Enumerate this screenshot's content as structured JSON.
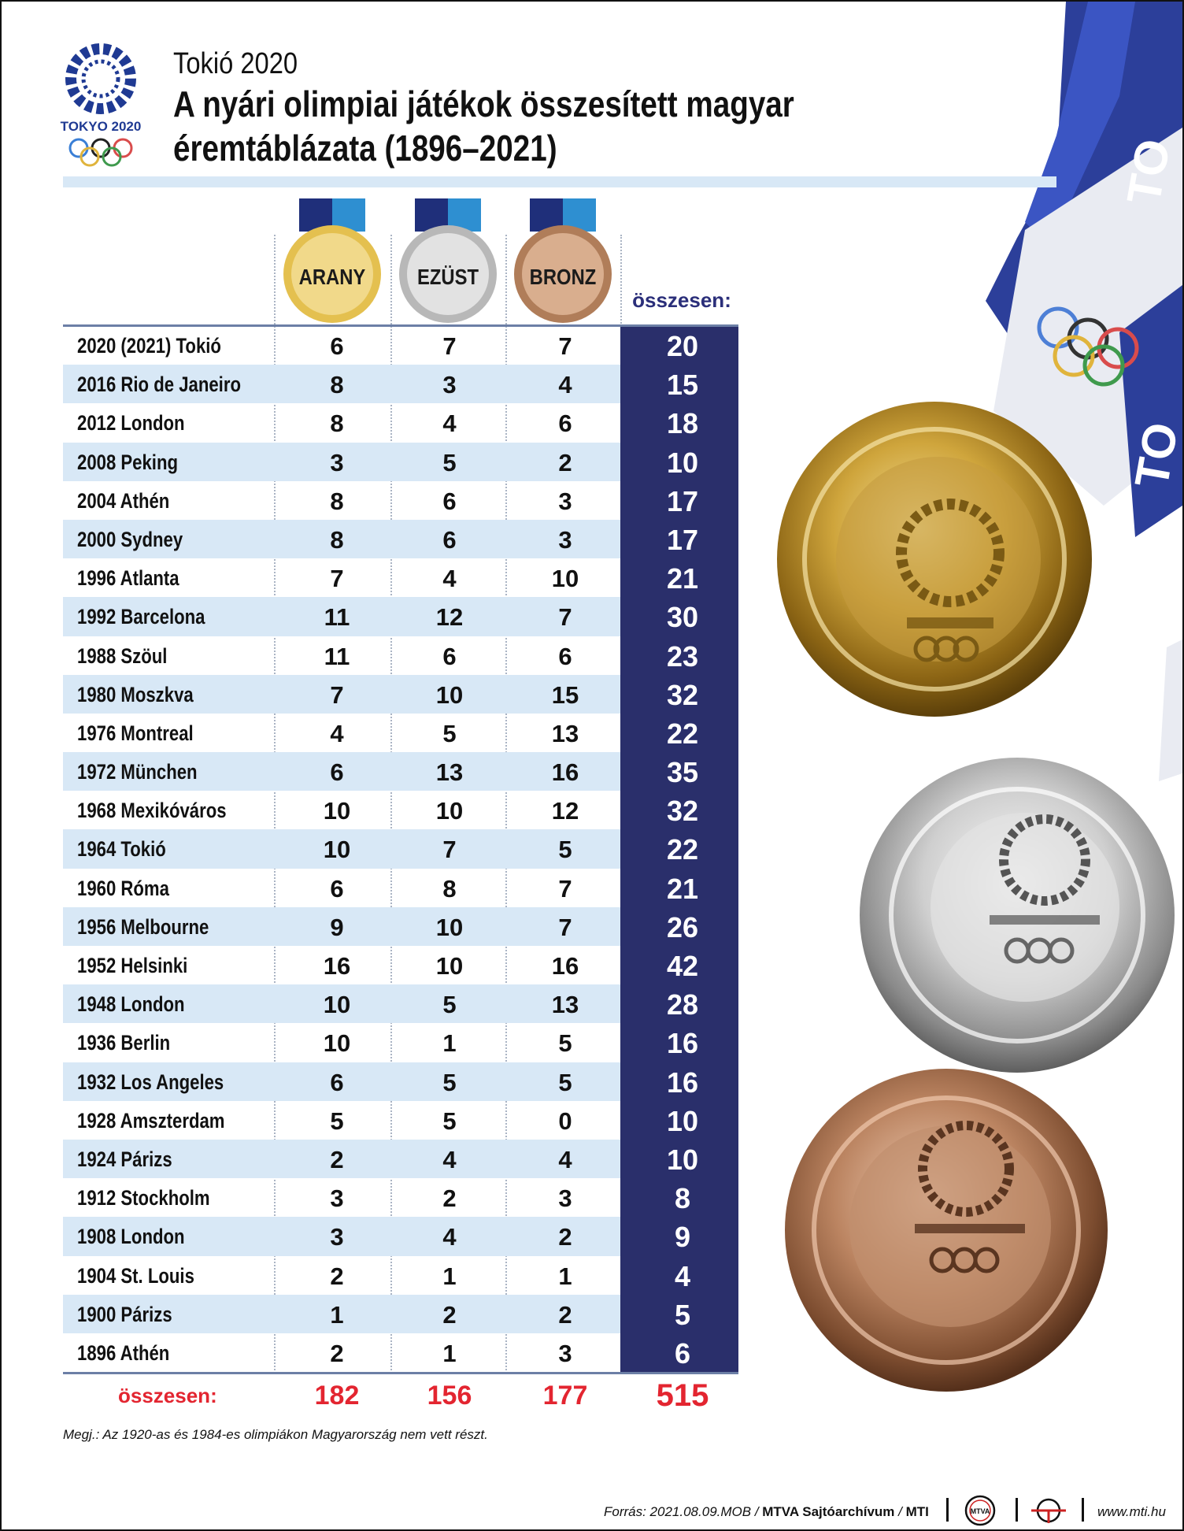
{
  "header": {
    "kicker": "Tokió 2020",
    "title_line1": "A nyári olimpiai játékok összesített magyar",
    "title_line2": "éremtáblázata (1896–2021)",
    "logo_text": "TOKYO 2020"
  },
  "columns": {
    "gold": "ARANY",
    "silver": "EZÜST",
    "bronze": "BRONZ",
    "total": "összesen:"
  },
  "rows": [
    {
      "games": "2020 (2021)  Tokió",
      "gold": "6",
      "silver": "7",
      "bronze": "7",
      "total": "20"
    },
    {
      "games": "2016  Rio de Janeiro",
      "gold": "8",
      "silver": "3",
      "bronze": "4",
      "total": "15"
    },
    {
      "games": "2012  London",
      "gold": "8",
      "silver": "4",
      "bronze": "6",
      "total": "18"
    },
    {
      "games": "2008  Peking",
      "gold": "3",
      "silver": "5",
      "bronze": "2",
      "total": "10"
    },
    {
      "games": "2004  Athén",
      "gold": "8",
      "silver": "6",
      "bronze": "3",
      "total": "17"
    },
    {
      "games": "2000  Sydney",
      "gold": "8",
      "silver": "6",
      "bronze": "3",
      "total": "17"
    },
    {
      "games": "1996  Atlanta",
      "gold": "7",
      "silver": "4",
      "bronze": "10",
      "total": "21"
    },
    {
      "games": "1992  Barcelona",
      "gold": "11",
      "silver": "12",
      "bronze": "7",
      "total": "30"
    },
    {
      "games": "1988  Szöul",
      "gold": "11",
      "silver": "6",
      "bronze": "6",
      "total": "23"
    },
    {
      "games": "1980  Moszkva",
      "gold": "7",
      "silver": "10",
      "bronze": "15",
      "total": "32"
    },
    {
      "games": "1976  Montreal",
      "gold": "4",
      "silver": "5",
      "bronze": "13",
      "total": "22"
    },
    {
      "games": "1972  München",
      "gold": "6",
      "silver": "13",
      "bronze": "16",
      "total": "35"
    },
    {
      "games": "1968  Mexikóváros",
      "gold": "10",
      "silver": "10",
      "bronze": "12",
      "total": "32"
    },
    {
      "games": "1964  Tokió",
      "gold": "10",
      "silver": "7",
      "bronze": "5",
      "total": "22"
    },
    {
      "games": "1960  Róma",
      "gold": "6",
      "silver": "8",
      "bronze": "7",
      "total": "21"
    },
    {
      "games": "1956  Melbourne",
      "gold": "9",
      "silver": "10",
      "bronze": "7",
      "total": "26"
    },
    {
      "games": "1952  Helsinki",
      "gold": "16",
      "silver": "10",
      "bronze": "16",
      "total": "42"
    },
    {
      "games": "1948  London",
      "gold": "10",
      "silver": "5",
      "bronze": "13",
      "total": "28"
    },
    {
      "games": "1936  Berlin",
      "gold": "10",
      "silver": "1",
      "bronze": "5",
      "total": "16"
    },
    {
      "games": "1932  Los Angeles",
      "gold": "6",
      "silver": "5",
      "bronze": "5",
      "total": "16"
    },
    {
      "games": "1928  Amszterdam",
      "gold": "5",
      "silver": "5",
      "bronze": "0",
      "total": "10"
    },
    {
      "games": "1924  Párizs",
      "gold": "2",
      "silver": "4",
      "bronze": "4",
      "total": "10"
    },
    {
      "games": "1912  Stockholm",
      "gold": "3",
      "silver": "2",
      "bronze": "3",
      "total": "8"
    },
    {
      "games": "1908  London",
      "gold": "3",
      "silver": "4",
      "bronze": "2",
      "total": "9"
    },
    {
      "games": "1904  St. Louis",
      "gold": "2",
      "silver": "1",
      "bronze": "1",
      "total": "4"
    },
    {
      "games": "1900  Párizs",
      "gold": "1",
      "silver": "2",
      "bronze": "2",
      "total": "5"
    },
    {
      "games": "1896  Athén",
      "gold": "2",
      "silver": "1",
      "bronze": "3",
      "total": "6"
    }
  ],
  "totals": {
    "label": "összesen:",
    "gold": "182",
    "silver": "156",
    "bronze": "177",
    "total": "515"
  },
  "note": "Megj.: Az 1920-as és 1984-es olimpiákon Magyarország nem vett részt.",
  "footer": {
    "source_prefix": "Forrás: 2021.08.09.MOB / ",
    "source_bold": "MTVA Sajtóarchívum",
    "source_sep": " / ",
    "source_mti": "MTI",
    "badge": "MTVA",
    "website": "www.mti.hu"
  },
  "colors": {
    "navy": "#2a2f6b",
    "light_blue": "#d8e8f6",
    "gold": "#d8b13e",
    "silver": "#c4c4c4",
    "bronze": "#b98562",
    "total_red": "#e32530"
  }
}
